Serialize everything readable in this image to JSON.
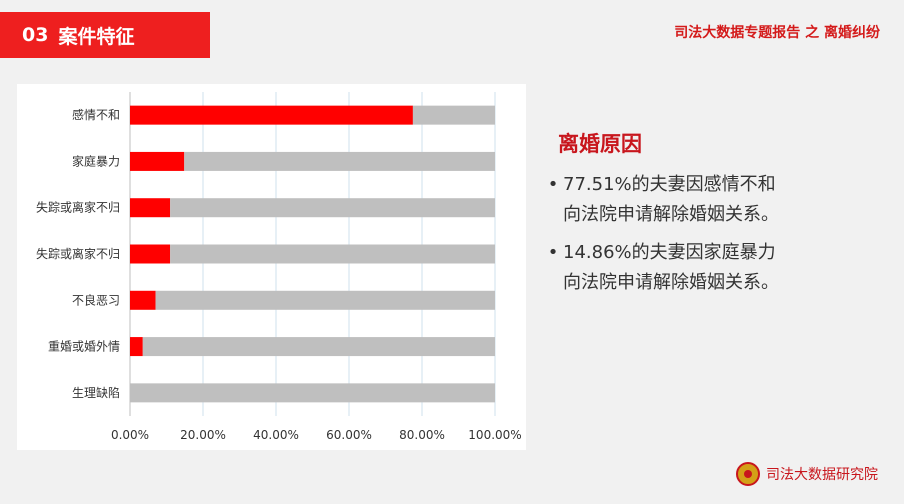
{
  "header": {
    "section_number": "03",
    "section_title": "案件特征"
  },
  "report_title": "司法大数据专题报告 之 离婚纠纷",
  "chart_data": {
    "type": "bar",
    "orientation": "horizontal",
    "stacked_to_100": true,
    "categories": [
      "感情不和",
      "家庭暴力",
      "失踪或离家不归",
      "失踪或离家不归",
      "不良恶习",
      "重婚或婚外情",
      "生理缺陷"
    ],
    "series": [
      {
        "values": [
          77.51,
          14.86,
          11.0,
          11.0,
          7.0,
          3.5,
          0.0
        ],
        "color": "#ff0000"
      },
      {
        "values": [
          22.49,
          85.14,
          89.0,
          89.0,
          93.0,
          96.5,
          100.0
        ],
        "color": "#bfbfbf"
      }
    ],
    "x_ticks": [
      "0.00%",
      "20.00%",
      "40.00%",
      "60.00%",
      "80.00%",
      "100.00%"
    ],
    "xlim": [
      0,
      100
    ],
    "grid": true,
    "legend": false
  },
  "reasons": {
    "title": "离婚原因",
    "items": [
      {
        "bullet": "•",
        "line1": "77.51%的夫妻因感情不和",
        "line2": "向法院申请解除婚姻关系。"
      },
      {
        "bullet": "•",
        "line1": "14.86%的夫妻因家庭暴力",
        "line2": "向法院申请解除婚姻关系。"
      }
    ]
  },
  "footer": {
    "org_name": "司法大数据研究院"
  },
  "colors": {
    "accent": "#ee1f1f",
    "text_red": "#c8161d"
  }
}
